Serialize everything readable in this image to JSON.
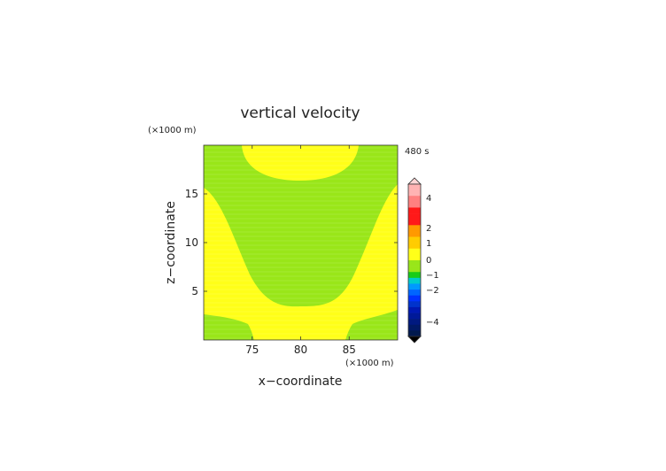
{
  "chart_data": {
    "type": "heatmap",
    "title": "vertical velocity",
    "time_label": "480 s",
    "xlabel": "x−coordinate",
    "ylabel": "z−coordinate",
    "x_unit": "(×1000 m)",
    "y_unit": "(×1000 m)",
    "xlim": [
      70,
      90
    ],
    "ylim": [
      0,
      20
    ],
    "xticks": [
      75,
      80,
      85
    ],
    "yticks": [
      5,
      10,
      15
    ],
    "field_regions": [
      {
        "color": "#99e619",
        "value_range": "-0.5 to 0",
        "region": "upper and side areas"
      },
      {
        "color": "#ffff19",
        "value_range": "0 to 0.5",
        "region": "central lower and top-center lobe"
      }
    ],
    "colorbar": {
      "tick_labels": [
        "4",
        "2",
        "1",
        "0",
        "−1",
        "−2",
        "−4"
      ],
      "colors_top_to_bottom": [
        "#ffb3b3",
        "#ffb3b3",
        "#ff8080",
        "#ff8080",
        "#ff1919",
        "#ff1919",
        "#ff1919",
        "#ff9900",
        "#ff9900",
        "#ffcc00",
        "#ffcc00",
        "#ffff19",
        "#ffff19",
        "#99e619",
        "#99e619",
        "#19cc19",
        "#00cccc",
        "#0099ff",
        "#0066ff",
        "#0033ff",
        "#0033cc",
        "#0019b3",
        "#001999",
        "#001980",
        "#001966",
        "#00194d"
      ]
    }
  }
}
